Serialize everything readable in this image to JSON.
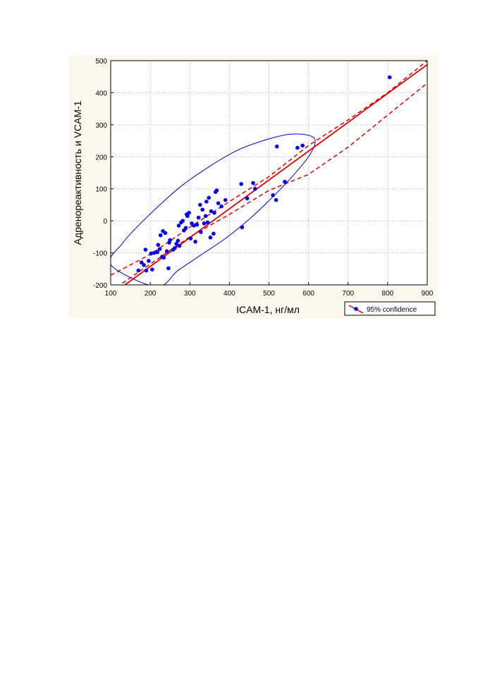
{
  "chart_data": {
    "type": "scatter",
    "xlabel": "ICAM-1, нг/мл",
    "ylabel": "Адренореактивность и  VCAM-1",
    "xlim": [
      100,
      900
    ],
    "ylim": [
      -200,
      500
    ],
    "xticks": [
      "100",
      "200",
      "300",
      "400",
      "500",
      "600",
      "700",
      "800",
      "900"
    ],
    "yticks": [
      "-200",
      "-100",
      "0",
      "100",
      "200",
      "300",
      "400",
      "500"
    ],
    "grid": true,
    "legend": {
      "position": "bottom-right",
      "label": "95% confidence"
    },
    "points": [
      [
        170,
        -155
      ],
      [
        178,
        -130
      ],
      [
        184,
        -138
      ],
      [
        188,
        -90
      ],
      [
        190,
        -155
      ],
      [
        196,
        -125
      ],
      [
        202,
        -102
      ],
      [
        205,
        -152
      ],
      [
        210,
        -100
      ],
      [
        218,
        -98
      ],
      [
        220,
        -75
      ],
      [
        224,
        -88
      ],
      [
        226,
        -45
      ],
      [
        230,
        -112
      ],
      [
        232,
        -32
      ],
      [
        234,
        -115
      ],
      [
        238,
        -38
      ],
      [
        242,
        -95
      ],
      [
        246,
        -148
      ],
      [
        248,
        -68
      ],
      [
        250,
        -60
      ],
      [
        258,
        -90
      ],
      [
        262,
        -85
      ],
      [
        266,
        -72
      ],
      [
        270,
        -62
      ],
      [
        272,
        -15
      ],
      [
        274,
        -78
      ],
      [
        278,
        -5
      ],
      [
        282,
        0
      ],
      [
        285,
        -30
      ],
      [
        290,
        -22
      ],
      [
        292,
        20
      ],
      [
        294,
        15
      ],
      [
        298,
        25
      ],
      [
        302,
        -55
      ],
      [
        305,
        -8
      ],
      [
        310,
        -15
      ],
      [
        314,
        -65
      ],
      [
        318,
        -12
      ],
      [
        322,
        10
      ],
      [
        326,
        50
      ],
      [
        328,
        -35
      ],
      [
        332,
        35
      ],
      [
        336,
        -8
      ],
      [
        340,
        15
      ],
      [
        342,
        60
      ],
      [
        345,
        -5
      ],
      [
        348,
        72
      ],
      [
        352,
        -52
      ],
      [
        354,
        30
      ],
      [
        360,
        -40
      ],
      [
        362,
        25
      ],
      [
        365,
        90
      ],
      [
        368,
        95
      ],
      [
        372,
        55
      ],
      [
        380,
        45
      ],
      [
        390,
        65
      ],
      [
        430,
        115
      ],
      [
        432,
        -20
      ],
      [
        445,
        70
      ],
      [
        460,
        118
      ],
      [
        465,
        100
      ],
      [
        510,
        80
      ],
      [
        518,
        65
      ],
      [
        520,
        232
      ],
      [
        540,
        122
      ],
      [
        572,
        228
      ],
      [
        585,
        235
      ],
      [
        805,
        448
      ]
    ],
    "regression": {
      "intercept": -322.5,
      "slope": 0.9
    },
    "confidence_bands": {
      "x": [
        100,
        200,
        300,
        400,
        500,
        600,
        700,
        800,
        900
      ],
      "lower": [
        -220,
        -135,
        -50,
        20,
        95,
        145,
        230,
        330,
        430
      ],
      "upper": [
        -170,
        -105,
        -20,
        60,
        138,
        235,
        315,
        400,
        500
      ]
    },
    "ellipse": {
      "points": [
        [
          101,
          -138
        ],
        [
          130,
          -70
        ],
        [
          170,
          -15
        ],
        [
          220,
          45
        ],
        [
          280,
          110
        ],
        [
          350,
          170
        ],
        [
          420,
          220
        ],
        [
          490,
          252
        ],
        [
          550,
          270
        ],
        [
          600,
          267
        ],
        [
          617,
          248
        ],
        [
          600,
          200
        ],
        [
          560,
          140
        ],
        [
          510,
          75
        ],
        [
          450,
          5
        ],
        [
          390,
          -55
        ],
        [
          330,
          -105
        ],
        [
          270,
          -155
        ],
        [
          215,
          -205
        ]
      ]
    },
    "colors": {
      "points": "#0000ee",
      "regression": "#dd0000",
      "ellipse": "#0000cc",
      "grid": "#b5b5b5",
      "plot_background": "#ffffff",
      "figure_background": "#fbf8ef"
    }
  }
}
